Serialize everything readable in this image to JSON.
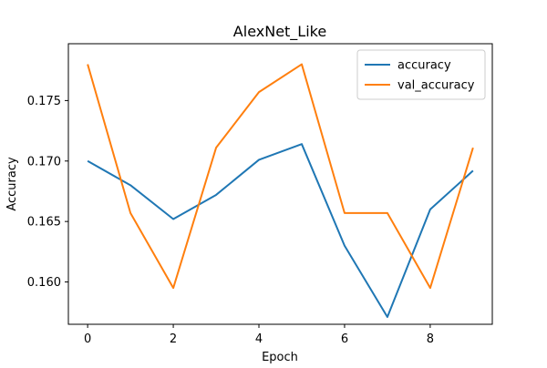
{
  "chart_data": {
    "type": "line",
    "title": "AlexNet_Like",
    "xlabel": "Epoch",
    "ylabel": "Accuracy",
    "x": [
      0,
      1,
      2,
      3,
      4,
      5,
      6,
      7,
      8,
      9
    ],
    "xlim": [
      -0.45,
      9.45
    ],
    "ylim": [
      0.1565,
      0.1797
    ],
    "xticks": [
      0,
      2,
      4,
      6,
      8
    ],
    "xtick_labels": [
      "0",
      "2",
      "4",
      "6",
      "8"
    ],
    "yticks": [
      0.16,
      0.165,
      0.17,
      0.175
    ],
    "ytick_labels": [
      "0.160",
      "0.165",
      "0.170",
      "0.175"
    ],
    "grid": false,
    "legend_position": "top-right",
    "series": [
      {
        "name": "accuracy",
        "color": "#1f77b4",
        "values": [
          0.17,
          0.168,
          0.1652,
          0.1672,
          0.1701,
          0.1714,
          0.163,
          0.1571,
          0.166,
          0.1692
        ]
      },
      {
        "name": "val_accuracy",
        "color": "#ff7f0e",
        "values": [
          0.178,
          0.1657,
          0.1595,
          0.1711,
          0.1757,
          0.178,
          0.1657,
          0.1657,
          0.1595,
          0.1711
        ]
      }
    ]
  }
}
